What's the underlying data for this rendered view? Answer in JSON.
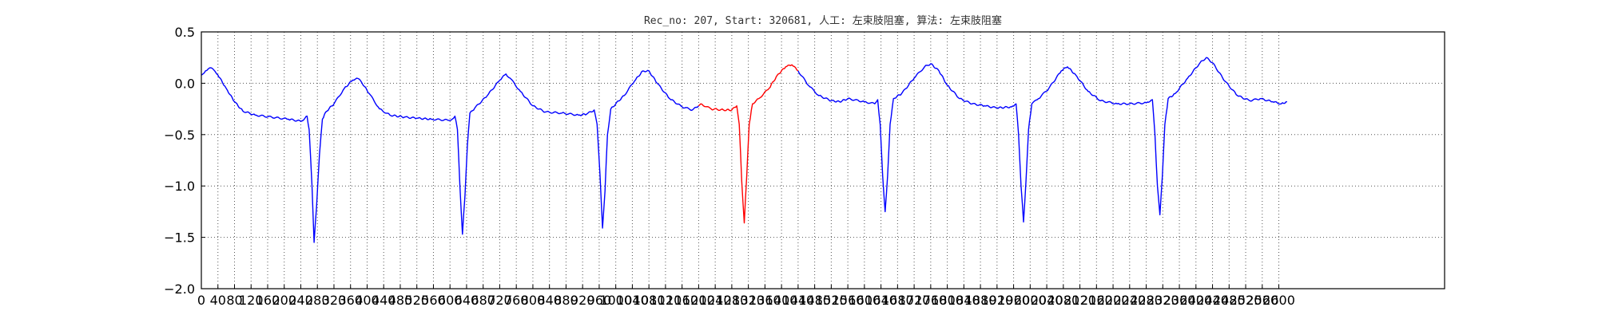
{
  "chart_data": {
    "type": "line",
    "title": "Rec_no: 207, Start: 320681, 人工: 左束肢阻塞, 算法: 左束肢阻塞",
    "xlabel": "",
    "ylabel": "",
    "xlim": [
      0,
      3000
    ],
    "ylim": [
      -2.0,
      0.5
    ],
    "grid": true,
    "legend": "none",
    "y_ticks": [
      -2.0,
      -1.5,
      -1.0,
      -0.5,
      0.0,
      0.5
    ],
    "y_tick_labels": [
      "−2.0",
      "−1.5",
      "−1.0",
      "−0.5",
      "0.0",
      "0.5"
    ],
    "x_ticks": [
      0,
      40,
      80,
      120,
      160,
      200,
      240,
      280,
      320,
      360,
      400,
      440,
      480,
      520,
      560,
      600,
      640,
      680,
      720,
      760,
      800,
      840,
      880,
      920,
      960,
      1000,
      1040,
      1080,
      1120,
      1160,
      1200,
      1240,
      1280,
      1320,
      1360,
      1400,
      1440,
      1480,
      1520,
      1560,
      1600,
      1640,
      1680,
      1720,
      1760,
      1800,
      1840,
      1880,
      1920,
      1960,
      2000,
      2040,
      2080,
      2120,
      2160,
      2200,
      2240,
      2280,
      2320,
      2360,
      2400,
      2440,
      2480,
      2520,
      2560,
      2600
    ],
    "x_tick_labels": [
      "0",
      "40",
      "80",
      "120",
      "160",
      "200",
      "240",
      "280",
      "320",
      "360",
      "400",
      "440",
      "480",
      "520",
      "560",
      "600",
      "640",
      "680",
      "720",
      "760",
      "800",
      "840",
      "880",
      "920",
      "960",
      "1000",
      "1040",
      "1080",
      "1120",
      "1160",
      "1200",
      "1240",
      "1280",
      "1320",
      "1360",
      "1400",
      "1440",
      "1480",
      "1520",
      "1560",
      "1600",
      "1640",
      "1680",
      "1720",
      "1760",
      "1800",
      "1840",
      "1880",
      "1920",
      "1960",
      "2000",
      "2040",
      "2080",
      "2120",
      "2160",
      "2200",
      "2240",
      "2280",
      "2320",
      "2360",
      "2400",
      "2440",
      "2480",
      "2520",
      "2560",
      "2600"
    ],
    "series": [
      {
        "color": "#0000ff",
        "points": [
          [
            0,
            0.08
          ],
          [
            10,
            0.12
          ],
          [
            20,
            0.15
          ],
          [
            30,
            0.13
          ],
          [
            40,
            0.08
          ],
          [
            60,
            -0.05
          ],
          [
            80,
            -0.18
          ],
          [
            100,
            -0.27
          ],
          [
            130,
            -0.31
          ],
          [
            170,
            -0.33
          ],
          [
            210,
            -0.35
          ],
          [
            240,
            -0.37
          ],
          [
            250,
            -0.34
          ],
          [
            255,
            -0.32
          ],
          [
            260,
            -0.45
          ],
          [
            267,
            -1.0
          ],
          [
            272,
            -1.55
          ],
          [
            278,
            -1.2
          ],
          [
            285,
            -0.7
          ],
          [
            292,
            -0.35
          ],
          [
            300,
            -0.28
          ],
          [
            320,
            -0.2
          ],
          [
            345,
            -0.05
          ],
          [
            365,
            0.03
          ],
          [
            375,
            0.05
          ],
          [
            385,
            0.02
          ],
          [
            405,
            -0.1
          ],
          [
            430,
            -0.25
          ],
          [
            455,
            -0.31
          ],
          [
            490,
            -0.33
          ],
          [
            520,
            -0.34
          ],
          [
            555,
            -0.35
          ],
          [
            595,
            -0.36
          ],
          [
            605,
            -0.35
          ],
          [
            612,
            -0.32
          ],
          [
            618,
            -0.45
          ],
          [
            624,
            -1.0
          ],
          [
            630,
            -1.47
          ],
          [
            636,
            -1.1
          ],
          [
            642,
            -0.6
          ],
          [
            648,
            -0.29
          ],
          [
            660,
            -0.24
          ],
          [
            690,
            -0.12
          ],
          [
            720,
            0.03
          ],
          [
            735,
            0.09
          ],
          [
            745,
            0.05
          ],
          [
            770,
            -0.08
          ],
          [
            800,
            -0.22
          ],
          [
            830,
            -0.28
          ],
          [
            870,
            -0.29
          ],
          [
            910,
            -0.31
          ],
          [
            930,
            -0.3
          ],
          [
            948,
            -0.26
          ],
          [
            955,
            -0.4
          ],
          [
            962,
            -0.9
          ],
          [
            968,
            -1.41
          ],
          [
            974,
            -1.05
          ],
          [
            980,
            -0.5
          ],
          [
            988,
            -0.25
          ],
          [
            1000,
            -0.2
          ],
          [
            1020,
            -0.12
          ],
          [
            1045,
            0.02
          ],
          [
            1065,
            0.12
          ],
          [
            1080,
            0.12
          ],
          [
            1100,
            0.0
          ],
          [
            1130,
            -0.15
          ],
          [
            1160,
            -0.23
          ],
          [
            1185,
            -0.26
          ],
          [
            1200,
            -0.22
          ]
        ]
      },
      {
        "color": "#ff0000",
        "points": [
          [
            1200,
            -0.22
          ],
          [
            1205,
            -0.2
          ],
          [
            1230,
            -0.25
          ],
          [
            1260,
            -0.26
          ],
          [
            1280,
            -0.26
          ],
          [
            1292,
            -0.22
          ],
          [
            1298,
            -0.4
          ],
          [
            1304,
            -0.95
          ],
          [
            1310,
            -1.36
          ],
          [
            1316,
            -0.9
          ],
          [
            1322,
            -0.4
          ],
          [
            1330,
            -0.2
          ],
          [
            1345,
            -0.15
          ],
          [
            1370,
            -0.05
          ],
          [
            1390,
            0.08
          ],
          [
            1410,
            0.16
          ],
          [
            1425,
            0.18
          ],
          [
            1440,
            0.12
          ]
        ]
      },
      {
        "color": "#0000ff",
        "points": [
          [
            1440,
            0.12
          ],
          [
            1465,
            -0.02
          ],
          [
            1490,
            -0.12
          ],
          [
            1520,
            -0.17
          ],
          [
            1540,
            -0.18
          ],
          [
            1560,
            -0.15
          ],
          [
            1600,
            -0.18
          ],
          [
            1625,
            -0.2
          ],
          [
            1632,
            -0.16
          ],
          [
            1638,
            -0.4
          ],
          [
            1644,
            -0.9
          ],
          [
            1650,
            -1.25
          ],
          [
            1656,
            -0.9
          ],
          [
            1662,
            -0.4
          ],
          [
            1670,
            -0.15
          ],
          [
            1690,
            -0.1
          ],
          [
            1720,
            0.05
          ],
          [
            1745,
            0.16
          ],
          [
            1760,
            0.19
          ],
          [
            1780,
            0.12
          ],
          [
            1800,
            -0.02
          ],
          [
            1830,
            -0.15
          ],
          [
            1860,
            -0.2
          ],
          [
            1890,
            -0.22
          ],
          [
            1920,
            -0.24
          ],
          [
            1955,
            -0.23
          ],
          [
            1966,
            -0.2
          ],
          [
            1972,
            -0.5
          ],
          [
            1978,
            -1.0
          ],
          [
            1984,
            -1.35
          ],
          [
            1990,
            -0.95
          ],
          [
            1996,
            -0.45
          ],
          [
            2004,
            -0.2
          ],
          [
            2020,
            -0.15
          ],
          [
            2045,
            -0.05
          ],
          [
            2075,
            0.12
          ],
          [
            2090,
            0.16
          ],
          [
            2110,
            0.08
          ],
          [
            2140,
            -0.08
          ],
          [
            2170,
            -0.17
          ],
          [
            2210,
            -0.2
          ],
          [
            2240,
            -0.2
          ],
          [
            2280,
            -0.19
          ],
          [
            2295,
            -0.16
          ],
          [
            2301,
            -0.5
          ],
          [
            2307,
            -1.0
          ],
          [
            2313,
            -1.28
          ],
          [
            2319,
            -0.9
          ],
          [
            2325,
            -0.4
          ],
          [
            2333,
            -0.15
          ],
          [
            2350,
            -0.1
          ],
          [
            2380,
            0.05
          ],
          [
            2410,
            0.2
          ],
          [
            2425,
            0.25
          ],
          [
            2440,
            0.2
          ],
          [
            2470,
            0.02
          ],
          [
            2500,
            -0.12
          ],
          [
            2530,
            -0.17
          ],
          [
            2555,
            -0.15
          ],
          [
            2585,
            -0.18
          ],
          [
            2606,
            -0.2
          ],
          [
            2620,
            -0.18
          ]
        ]
      }
    ]
  }
}
